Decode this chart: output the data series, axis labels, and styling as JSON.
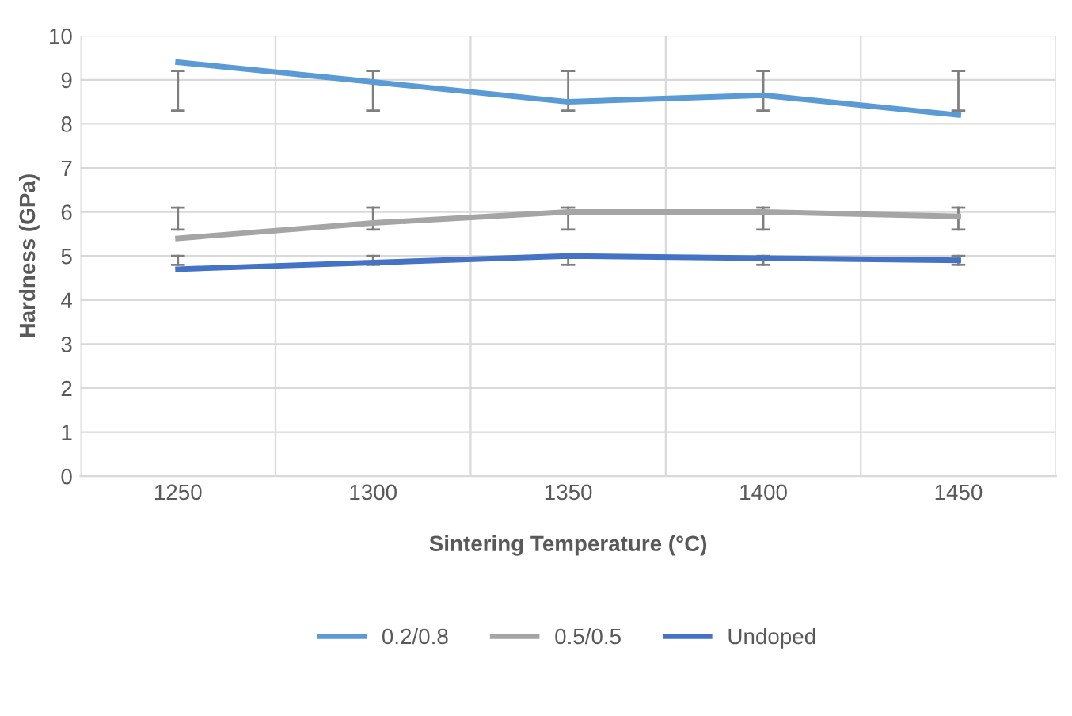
{
  "chart_data": {
    "type": "line",
    "xlabel": "Sintering Temperature (°C)",
    "ylabel": "Hardness (GPa)",
    "categories": [
      "1250",
      "1300",
      "1350",
      "1400",
      "1450"
    ],
    "series": [
      {
        "name": "0.2/0.8",
        "color": "#5b9bd5",
        "values": [
          9.4,
          8.95,
          8.5,
          8.65,
          8.2
        ],
        "errors": [
          [
            8.3,
            9.2
          ],
          [
            8.3,
            9.2
          ],
          [
            8.3,
            9.2
          ],
          [
            8.3,
            9.2
          ],
          [
            8.3,
            9.2
          ]
        ]
      },
      {
        "name": "0.5/0.5",
        "color": "#a5a5a5",
        "values": [
          5.4,
          5.75,
          6.0,
          6.0,
          5.9
        ],
        "errors": [
          [
            5.6,
            6.1
          ],
          [
            5.6,
            6.1
          ],
          [
            5.6,
            6.1
          ],
          [
            5.6,
            6.1
          ],
          [
            5.6,
            6.1
          ]
        ]
      },
      {
        "name": "Undoped",
        "color": "#4472c4",
        "values": [
          4.7,
          4.85,
          5.0,
          4.95,
          4.9
        ],
        "errors": [
          [
            4.8,
            5.0
          ],
          [
            4.8,
            5.0
          ],
          [
            4.8,
            5.0
          ],
          [
            4.8,
            5.0
          ],
          [
            4.8,
            5.0
          ]
        ]
      }
    ],
    "ylim": [
      0,
      10
    ],
    "yticks": [
      0,
      1,
      2,
      3,
      4,
      5,
      6,
      7,
      8,
      9,
      10
    ],
    "grid": true,
    "legend": "bottom",
    "marker": "none",
    "line_style": "solid"
  }
}
